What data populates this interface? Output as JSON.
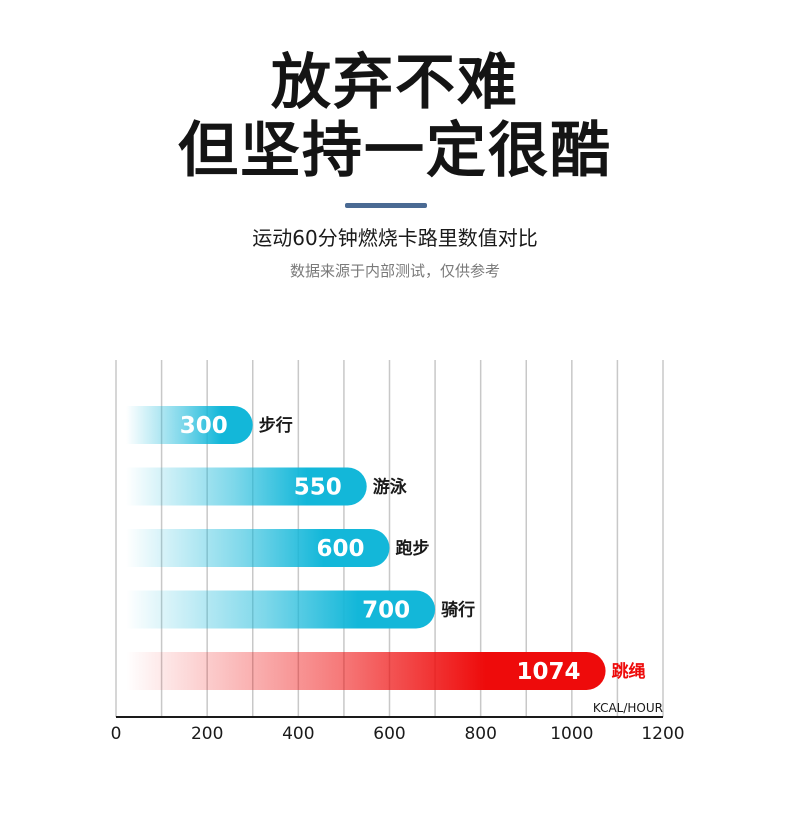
{
  "header": {
    "title_line1": "放弃不难",
    "title_line2": "但坚持一定很酷",
    "subtitle": "运动60分钟燃烧卡路里数值对比",
    "note": "数据来源于内部测试，仅供参考"
  },
  "chart_data": {
    "type": "bar",
    "orientation": "horizontal",
    "categories": [
      "步行",
      "游泳",
      "跑步",
      "骑行",
      "跳绳"
    ],
    "values": [
      300,
      550,
      600,
      700,
      1074
    ],
    "xlim": [
      0,
      1200
    ],
    "xticks": [
      0,
      200,
      400,
      600,
      800,
      1000,
      1200
    ],
    "unit_label": "KCAL/HOUR",
    "grid": true,
    "colors": {
      "default": "#13b7d9",
      "highlight": "#ee0b0b",
      "gridline": "#c8c8c8",
      "axis": "#1a1a1a"
    },
    "highlight_category": "跳绳"
  }
}
